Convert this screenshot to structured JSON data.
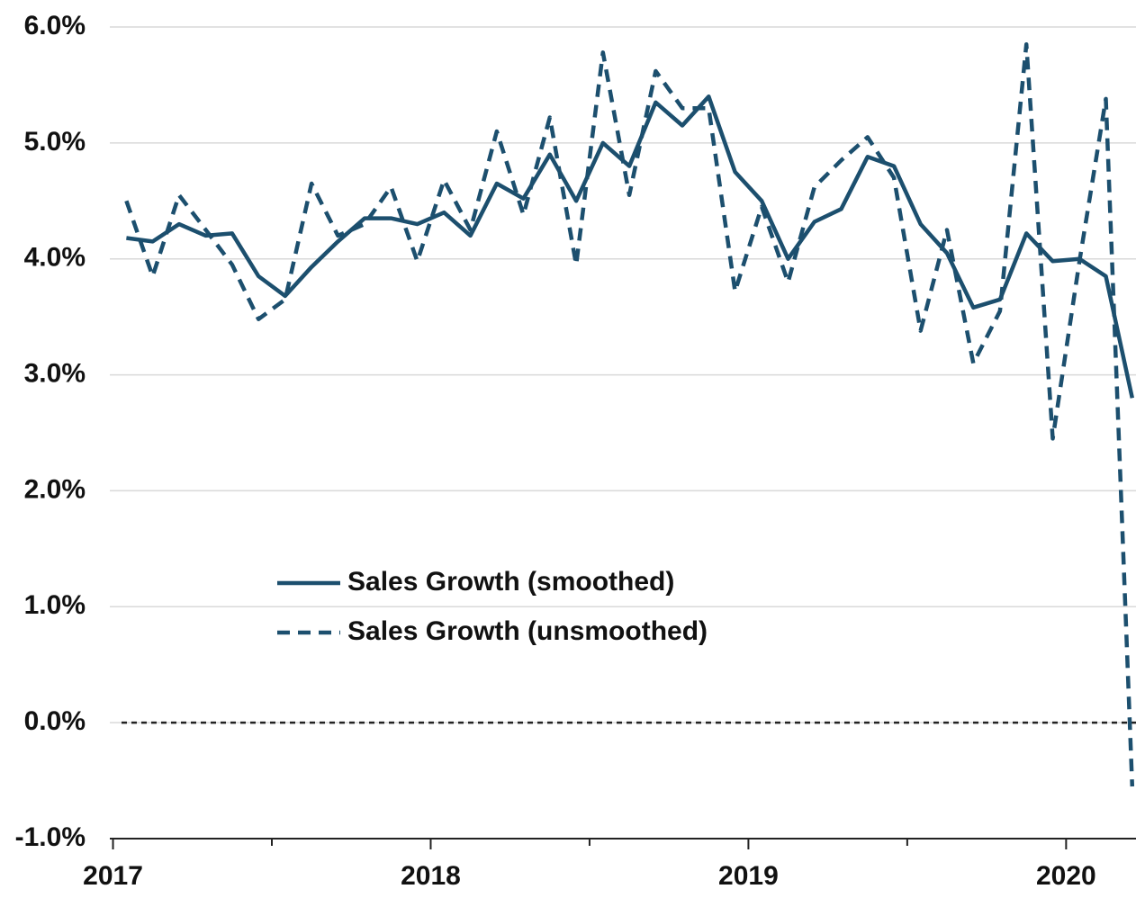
{
  "chart_data": {
    "type": "line",
    "x": [
      2017.042,
      2017.125,
      2017.208,
      2017.292,
      2017.375,
      2017.458,
      2017.542,
      2017.625,
      2017.708,
      2017.792,
      2017.875,
      2017.958,
      2018.042,
      2018.125,
      2018.208,
      2018.292,
      2018.375,
      2018.458,
      2018.542,
      2018.625,
      2018.708,
      2018.792,
      2018.875,
      2018.958,
      2019.042,
      2019.125,
      2019.208,
      2019.292,
      2019.375,
      2019.458,
      2019.542,
      2019.625,
      2019.708,
      2019.792,
      2019.875,
      2019.958,
      2020.042,
      2020.125,
      2020.208
    ],
    "series": [
      {
        "name": "Sales Growth (smoothed)",
        "color": "#1c4f6e",
        "line_style": "solid",
        "values": [
          4.18,
          4.15,
          4.3,
          4.2,
          4.22,
          3.85,
          3.68,
          3.93,
          4.15,
          4.35,
          4.35,
          4.3,
          4.4,
          4.2,
          4.65,
          4.52,
          4.9,
          4.5,
          5.0,
          4.8,
          5.35,
          5.15,
          5.4,
          4.75,
          4.5,
          4.0,
          4.32,
          4.43,
          4.88,
          4.8,
          4.3,
          4.05,
          3.58,
          3.65,
          4.22,
          3.98,
          4.0,
          3.85,
          2.8
        ]
      },
      {
        "name": "Sales Growth (unsmoothed)",
        "color": "#1c4f6e",
        "line_style": "dashed",
        "values": [
          4.5,
          3.85,
          4.55,
          4.25,
          3.95,
          3.48,
          3.65,
          4.65,
          4.2,
          4.3,
          4.62,
          3.98,
          4.68,
          4.25,
          5.1,
          4.38,
          5.22,
          3.95,
          5.78,
          4.55,
          5.62,
          5.3,
          5.3,
          3.72,
          4.45,
          3.8,
          4.62,
          4.85,
          5.05,
          4.7,
          3.38,
          4.25,
          3.1,
          3.55,
          5.85,
          2.45,
          3.98,
          5.38,
          -0.55
        ]
      }
    ],
    "xlim": [
      2016.99,
      2020.22
    ],
    "xticks": [
      2017,
      2018,
      2019,
      2020
    ],
    "ylim": [
      -1,
      6
    ],
    "yticks": [
      {
        "value": -1,
        "label": "-1.0%"
      },
      {
        "value": 0,
        "label": "0.0%"
      },
      {
        "value": 1,
        "label": "1.0%"
      },
      {
        "value": 2,
        "label": "2.0%"
      },
      {
        "value": 3,
        "label": "3.0%"
      },
      {
        "value": 4,
        "label": "4.0%"
      },
      {
        "value": 5,
        "label": "5.0%"
      },
      {
        "value": 6,
        "label": "6.0%"
      }
    ],
    "reference_line": 0,
    "grid": true,
    "legend": "lower left"
  }
}
